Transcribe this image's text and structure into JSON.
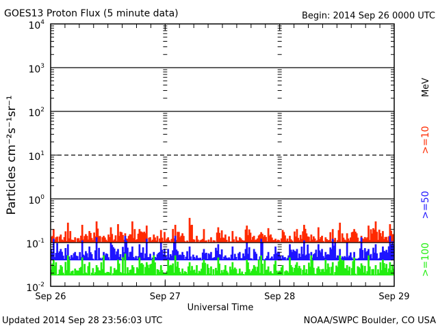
{
  "chart_data": {
    "type": "line",
    "title": "GOES13 Proton Flux (5 minute data)",
    "begin_label": "Begin: 2014 Sep 26 0000 UTC",
    "xlabel": "Universal Time",
    "ylabel": "Particles cm⁻²s⁻¹sr⁻¹",
    "yscale": "log",
    "ylim": [
      0.01,
      10000
    ],
    "y_ticks": [
      {
        "base": "10",
        "exp": "4",
        "value": 10000
      },
      {
        "base": "10",
        "exp": "3",
        "value": 1000
      },
      {
        "base": "10",
        "exp": "2",
        "value": 100
      },
      {
        "base": "10",
        "exp": "1",
        "value": 10
      },
      {
        "base": "10",
        "exp": "0",
        "value": 1
      },
      {
        "base": "10",
        "exp": "-1",
        "value": 0.1
      },
      {
        "base": "10",
        "exp": "-2",
        "value": 0.01
      }
    ],
    "x_ticks": [
      "Sep 26",
      "Sep 27",
      "Sep 28",
      "Sep 29"
    ],
    "xlim_days": [
      0,
      3
    ],
    "threshold_dashed_value": 10,
    "legend_unit": "MeV",
    "series": [
      {
        "name": ">=10",
        "color": "#ff2a00",
        "floor": 0.1,
        "values": [
          0.2,
          0.15,
          0.28,
          0.13,
          0.25,
          0.18,
          0.3,
          0.14,
          0.22,
          0.26,
          0.16,
          0.3,
          0.2,
          0.24,
          0.15,
          0.19,
          0.13,
          0.25,
          0.16,
          0.36,
          0.14,
          0.2,
          0.13,
          0.22,
          0.15,
          0.18,
          0.13,
          0.24,
          0.14,
          0.17,
          0.21,
          0.12,
          0.19,
          0.14,
          0.2,
          0.25,
          0.15,
          0.22,
          0.13,
          0.2,
          0.28,
          0.16,
          0.2,
          0.14,
          0.24,
          0.3,
          0.18,
          0.26
        ]
      },
      {
        "name": ">=50",
        "color": "#1e14ff",
        "floor": 0.04,
        "values": [
          0.12,
          0.07,
          0.09,
          0.06,
          0.11,
          0.08,
          0.13,
          0.06,
          0.1,
          0.07,
          0.14,
          0.08,
          0.09,
          0.12,
          0.06,
          0.1,
          0.07,
          0.14,
          0.06,
          0.08,
          0.05,
          0.07,
          0.06,
          0.09,
          0.05,
          0.08,
          0.06,
          0.1,
          0.07,
          0.12,
          0.06,
          0.08,
          0.05,
          0.09,
          0.07,
          0.11,
          0.06,
          0.09,
          0.06,
          0.12,
          0.07,
          0.1,
          0.06,
          0.13,
          0.07,
          0.09,
          0.08,
          0.14
        ]
      },
      {
        "name": ">=100",
        "color": "#22ee10",
        "floor": 0.018,
        "values": [
          0.04,
          0.03,
          0.05,
          0.025,
          0.045,
          0.035,
          0.03,
          0.05,
          0.028,
          0.04,
          0.055,
          0.03,
          0.045,
          0.035,
          0.05,
          0.03,
          0.04,
          0.05,
          0.025,
          0.035,
          0.03,
          0.04,
          0.028,
          0.045,
          0.03,
          0.035,
          0.025,
          0.04,
          0.03,
          0.05,
          0.028,
          0.038,
          0.03,
          0.045,
          0.035,
          0.03,
          0.05,
          0.028,
          0.04,
          0.035,
          0.05,
          0.03,
          0.045,
          0.033,
          0.05,
          0.03,
          0.04,
          0.035
        ]
      }
    ]
  },
  "footer": {
    "updated": "Updated 2014 Sep 28 23:56:03 UTC",
    "credit": "NOAA/SWPC Boulder, CO USA"
  }
}
